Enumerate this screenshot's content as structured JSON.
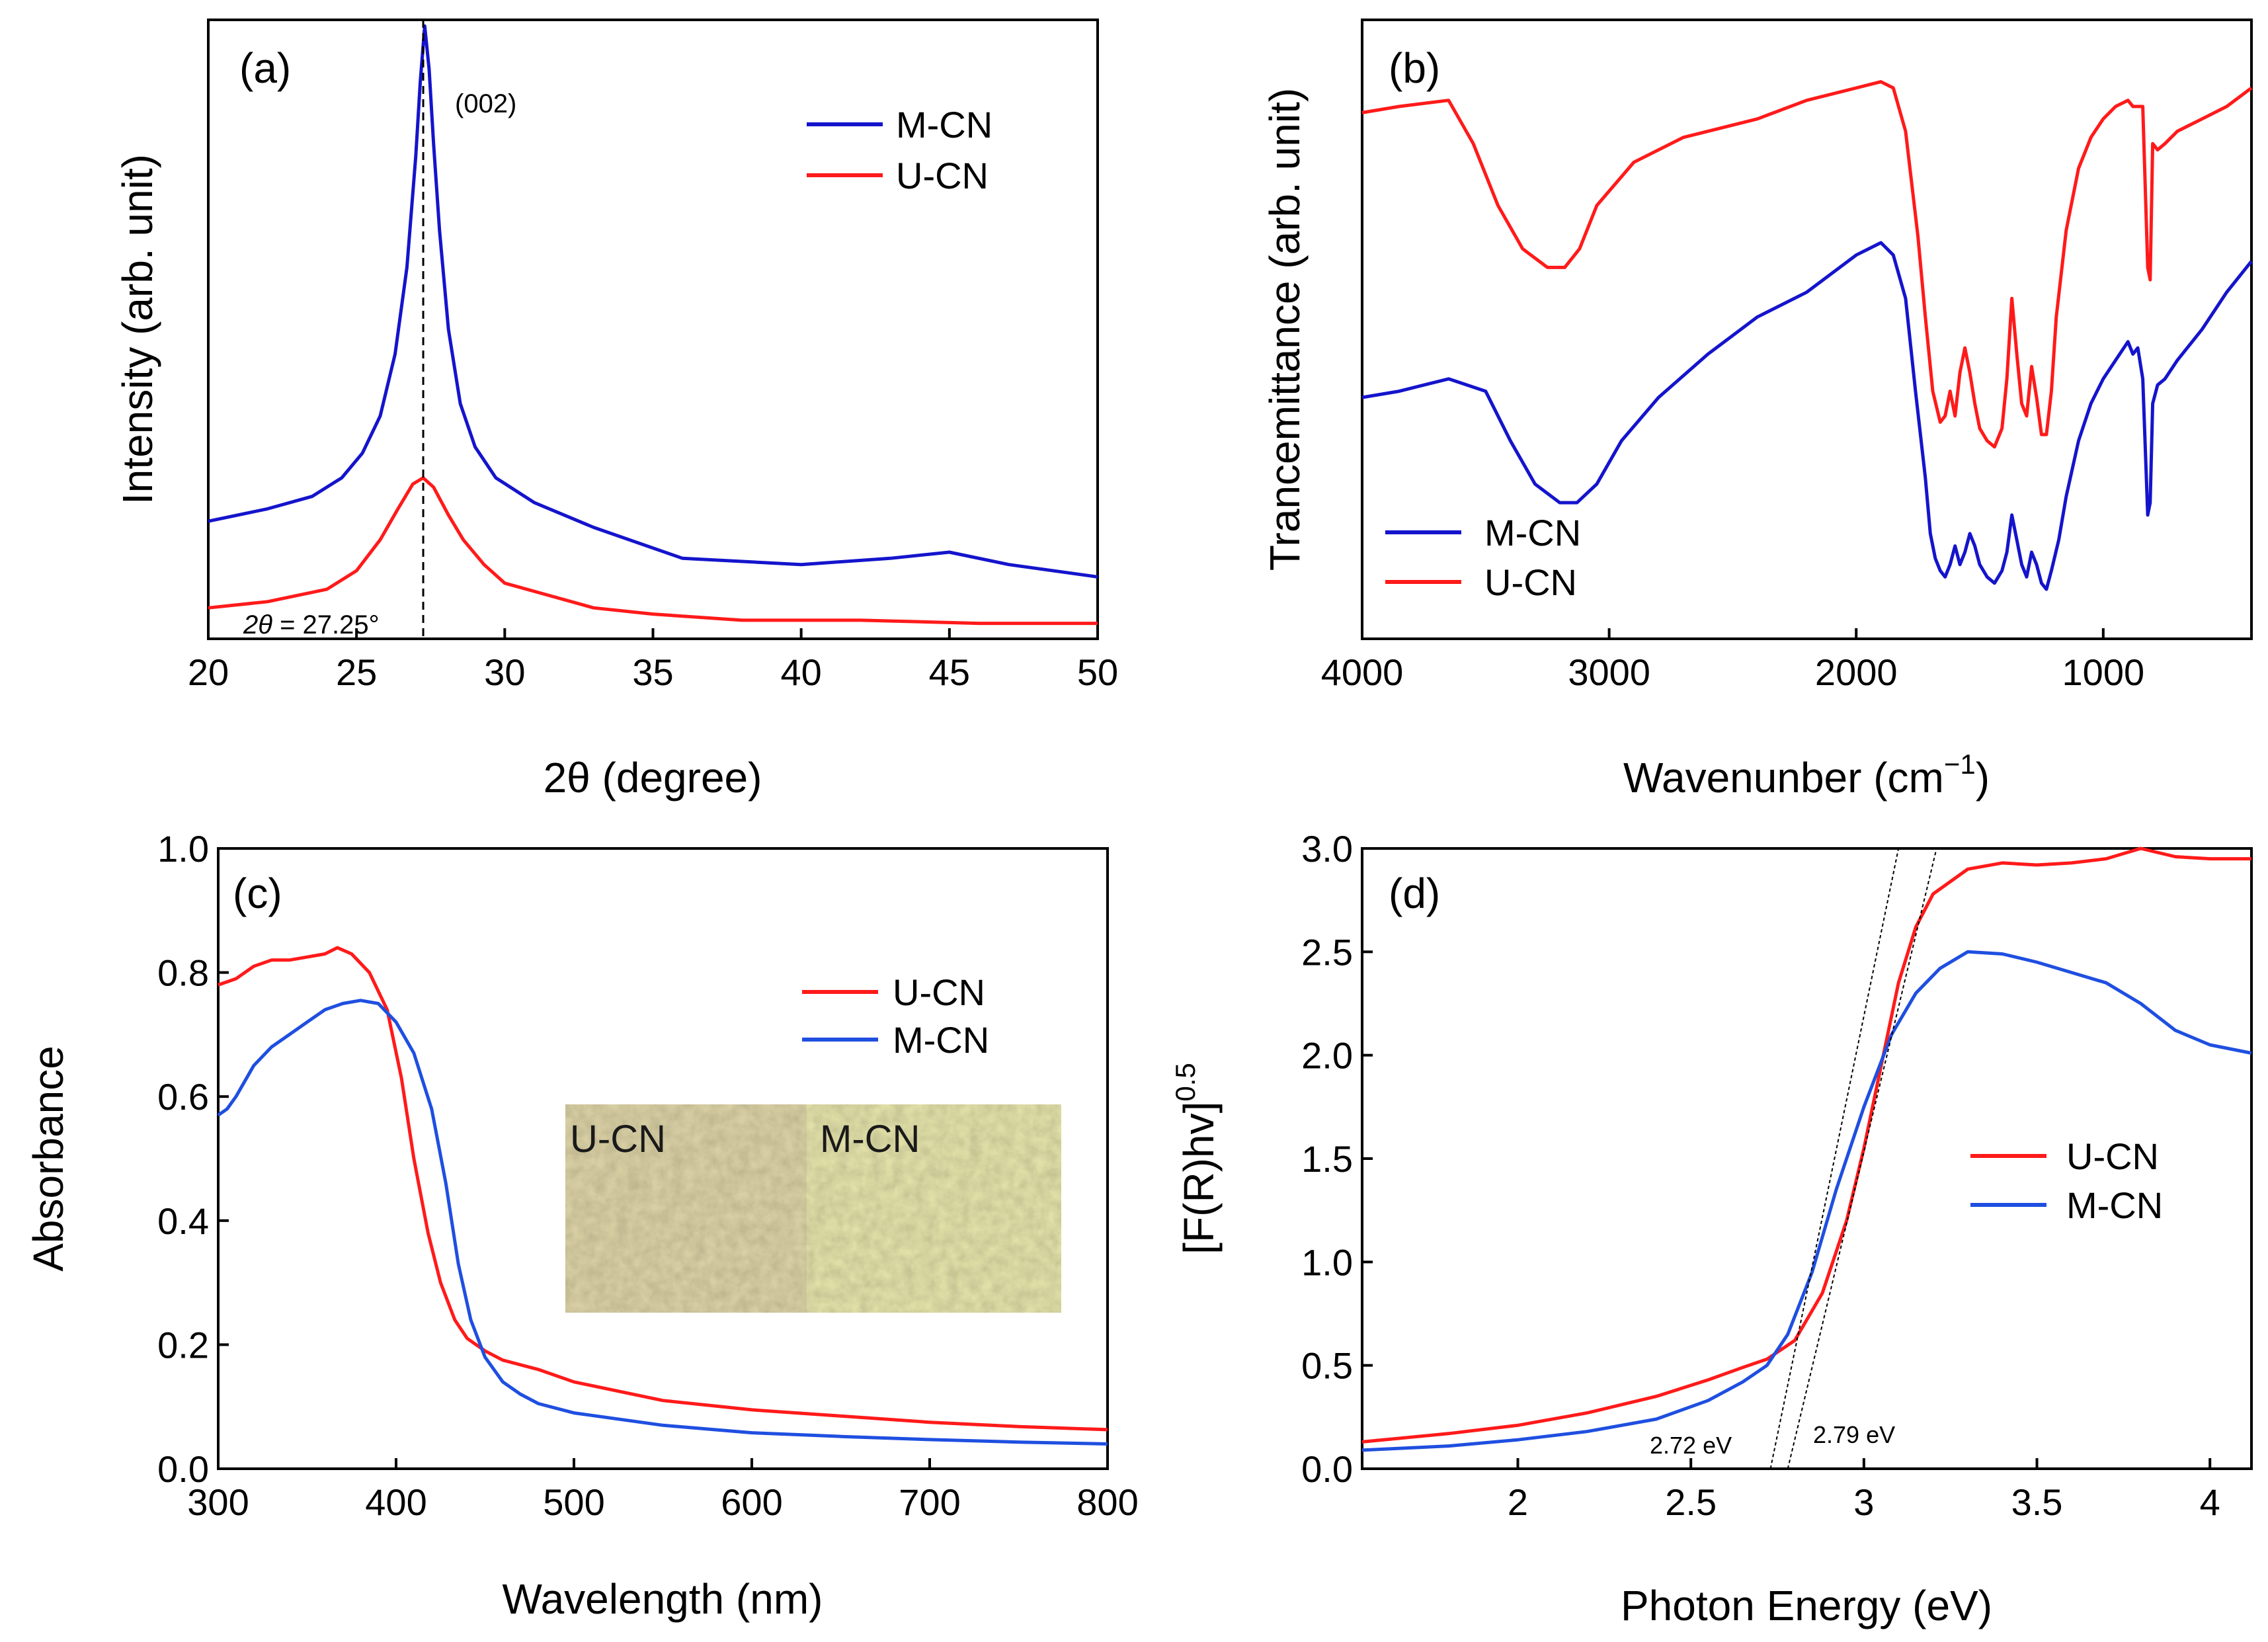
{
  "colors": {
    "red": "#ff1a1a",
    "blue": "#1414cc",
    "blue_c": "#1f4fe0",
    "axis": "#000000"
  },
  "chart_data": [
    {
      "id": "a",
      "type": "line",
      "panel_label": "(a)",
      "xlabel": "2θ (degree)",
      "ylabel": "Intensity (arb. unit)",
      "xlim": [
        20,
        50
      ],
      "ylim": [
        0,
        1
      ],
      "x_ticks": [
        20,
        25,
        30,
        35,
        40,
        45,
        50
      ],
      "y_tick_labels": false,
      "legend": {
        "position": "top-right",
        "order": [
          "M-CN",
          "U-CN"
        ]
      },
      "annotations": {
        "peak_label": "(002)",
        "peak_position_label": "2θ = 27.25°",
        "peak_position": 27.25
      },
      "series": [
        {
          "name": "M-CN",
          "color": "blue",
          "x": [
            20,
            22,
            23.5,
            24.5,
            25.2,
            25.8,
            26.3,
            26.7,
            27.0,
            27.15,
            27.3,
            27.45,
            27.6,
            27.8,
            28.1,
            28.5,
            29,
            29.7,
            31,
            33,
            36,
            40,
            43,
            45,
            47,
            50
          ],
          "y": [
            0.19,
            0.21,
            0.23,
            0.26,
            0.3,
            0.36,
            0.46,
            0.6,
            0.78,
            0.9,
            0.99,
            0.92,
            0.8,
            0.66,
            0.5,
            0.38,
            0.31,
            0.26,
            0.22,
            0.18,
            0.13,
            0.12,
            0.13,
            0.14,
            0.12,
            0.1
          ]
        },
        {
          "name": "U-CN",
          "color": "red",
          "x": [
            20,
            22,
            24,
            25,
            25.8,
            26.4,
            26.9,
            27.25,
            27.6,
            28.1,
            28.6,
            29.3,
            30,
            31.5,
            33,
            35,
            38,
            42,
            46,
            50
          ],
          "y": [
            0.05,
            0.06,
            0.08,
            0.11,
            0.16,
            0.21,
            0.25,
            0.26,
            0.245,
            0.2,
            0.16,
            0.12,
            0.09,
            0.07,
            0.05,
            0.04,
            0.03,
            0.03,
            0.025,
            0.025
          ]
        }
      ]
    },
    {
      "id": "b",
      "type": "line",
      "panel_label": "(b)",
      "xlabel": "Wavenunber (cm",
      "xlabel_superscript": "−1",
      "xlabel_suffix": ")",
      "ylabel": "Trancemittance (arb. unit)",
      "xlim": [
        4000,
        400
      ],
      "x_reversed": true,
      "ylim": [
        0,
        1
      ],
      "x_ticks": [
        4000,
        3000,
        2000,
        1000
      ],
      "y_tick_labels": false,
      "legend": {
        "position": "bottom-left",
        "order": [
          "M-CN",
          "U-CN"
        ]
      },
      "series": [
        {
          "name": "U-CN",
          "color": "red",
          "x": [
            4000,
            3850,
            3650,
            3550,
            3450,
            3350,
            3250,
            3180,
            3120,
            3050,
            2900,
            2700,
            2400,
            2200,
            2000,
            1900,
            1850,
            1800,
            1750,
            1720,
            1690,
            1660,
            1640,
            1620,
            1600,
            1580,
            1560,
            1540,
            1520,
            1500,
            1470,
            1440,
            1410,
            1390,
            1370,
            1350,
            1330,
            1310,
            1290,
            1270,
            1250,
            1230,
            1210,
            1190,
            1150,
            1100,
            1050,
            1000,
            950,
            900,
            880,
            860,
            840,
            820,
            810,
            800,
            780,
            750,
            700,
            600,
            500,
            400
          ],
          "y": [
            0.85,
            0.86,
            0.87,
            0.8,
            0.7,
            0.63,
            0.6,
            0.6,
            0.63,
            0.7,
            0.77,
            0.81,
            0.84,
            0.87,
            0.89,
            0.9,
            0.89,
            0.82,
            0.65,
            0.52,
            0.4,
            0.35,
            0.36,
            0.4,
            0.36,
            0.43,
            0.47,
            0.43,
            0.38,
            0.34,
            0.32,
            0.31,
            0.34,
            0.42,
            0.55,
            0.46,
            0.38,
            0.36,
            0.44,
            0.39,
            0.33,
            0.33,
            0.4,
            0.52,
            0.66,
            0.76,
            0.81,
            0.84,
            0.86,
            0.87,
            0.86,
            0.86,
            0.86,
            0.6,
            0.58,
            0.8,
            0.79,
            0.8,
            0.82,
            0.84,
            0.86,
            0.89
          ]
        },
        {
          "name": "M-CN",
          "color": "blue",
          "x": [
            4000,
            3850,
            3650,
            3500,
            3400,
            3300,
            3200,
            3130,
            3050,
            2950,
            2800,
            2600,
            2400,
            2200,
            2000,
            1900,
            1850,
            1800,
            1760,
            1720,
            1700,
            1680,
            1660,
            1640,
            1620,
            1600,
            1580,
            1560,
            1540,
            1520,
            1500,
            1470,
            1440,
            1410,
            1390,
            1370,
            1350,
            1330,
            1310,
            1290,
            1270,
            1250,
            1230,
            1210,
            1180,
            1150,
            1100,
            1050,
            1000,
            950,
            900,
            880,
            860,
            840,
            820,
            810,
            800,
            780,
            750,
            700,
            600,
            500,
            400
          ],
          "y": [
            0.39,
            0.4,
            0.42,
            0.4,
            0.32,
            0.25,
            0.22,
            0.22,
            0.25,
            0.32,
            0.39,
            0.46,
            0.52,
            0.56,
            0.62,
            0.64,
            0.62,
            0.55,
            0.4,
            0.26,
            0.17,
            0.13,
            0.11,
            0.1,
            0.12,
            0.15,
            0.12,
            0.14,
            0.17,
            0.15,
            0.12,
            0.1,
            0.09,
            0.11,
            0.14,
            0.2,
            0.16,
            0.12,
            0.1,
            0.14,
            0.12,
            0.09,
            0.08,
            0.11,
            0.16,
            0.23,
            0.32,
            0.38,
            0.42,
            0.45,
            0.48,
            0.46,
            0.47,
            0.42,
            0.2,
            0.22,
            0.38,
            0.41,
            0.42,
            0.45,
            0.5,
            0.56,
            0.61
          ]
        }
      ]
    },
    {
      "id": "c",
      "type": "line",
      "panel_label": "(c)",
      "xlabel": "Wavelength (nm)",
      "ylabel": "Absorbance",
      "xlim": [
        300,
        800
      ],
      "ylim": [
        0,
        1
      ],
      "x_ticks": [
        300,
        400,
        500,
        600,
        700,
        800
      ],
      "y_ticks": [
        0.0,
        0.2,
        0.4,
        0.6,
        0.8,
        1.0
      ],
      "legend": {
        "position": "top-right",
        "order": [
          "U-CN",
          "M-CN"
        ]
      },
      "inset": {
        "left_label": "U-CN",
        "right_label": "M-CN",
        "left_color": "#d8cfa4",
        "right_color": "#e1e0a8"
      },
      "series": [
        {
          "name": "U-CN",
          "color": "red",
          "x": [
            300,
            310,
            320,
            330,
            340,
            350,
            360,
            367,
            375,
            385,
            395,
            403,
            410,
            418,
            425,
            433,
            440,
            450,
            460,
            480,
            500,
            550,
            600,
            650,
            700,
            750,
            800
          ],
          "y": [
            0.78,
            0.79,
            0.81,
            0.82,
            0.82,
            0.825,
            0.83,
            0.84,
            0.83,
            0.8,
            0.74,
            0.63,
            0.5,
            0.38,
            0.3,
            0.24,
            0.21,
            0.19,
            0.175,
            0.16,
            0.14,
            0.11,
            0.095,
            0.085,
            0.075,
            0.068,
            0.063
          ]
        },
        {
          "name": "M-CN",
          "color": "blue_c",
          "x": [
            300,
            305,
            310,
            320,
            330,
            340,
            350,
            360,
            370,
            380,
            390,
            400,
            410,
            420,
            428,
            435,
            442,
            450,
            460,
            470,
            480,
            500,
            550,
            600,
            650,
            700,
            750,
            800
          ],
          "y": [
            0.57,
            0.58,
            0.6,
            0.65,
            0.68,
            0.7,
            0.72,
            0.74,
            0.75,
            0.755,
            0.75,
            0.72,
            0.67,
            0.58,
            0.46,
            0.33,
            0.24,
            0.18,
            0.14,
            0.12,
            0.105,
            0.09,
            0.07,
            0.058,
            0.052,
            0.047,
            0.043,
            0.04
          ]
        }
      ]
    },
    {
      "id": "d",
      "type": "line",
      "panel_label": "(d)",
      "xlabel": "Photon Energy (eV)",
      "ylabel": "[F(R)hv]",
      "ylabel_superscript": "0.5",
      "xlim": [
        1.55,
        4.12
      ],
      "ylim": [
        0,
        3
      ],
      "x_ticks": [
        2.0,
        2.5,
        3.0,
        3.5,
        4.0
      ],
      "y_ticks": [
        0.0,
        0.5,
        1.0,
        1.5,
        2.0,
        2.5,
        3.0
      ],
      "legend": {
        "position": "right",
        "order": [
          "U-CN",
          "M-CN"
        ]
      },
      "annotations": [
        {
          "text": "2.72 eV",
          "value": 2.72
        },
        {
          "text": "2.79 eV",
          "value": 2.79
        }
      ],
      "tangents": [
        {
          "x0": 2.73,
          "x1": 3.1,
          "y0": 0,
          "y1": 3.0
        },
        {
          "x0": 2.78,
          "x1": 3.21,
          "y0": 0,
          "y1": 3.0
        }
      ],
      "series": [
        {
          "name": "U-CN",
          "color": "red",
          "x": [
            1.55,
            1.8,
            2.0,
            2.2,
            2.4,
            2.55,
            2.65,
            2.72,
            2.8,
            2.88,
            2.95,
            3.0,
            3.05,
            3.1,
            3.15,
            3.2,
            3.3,
            3.4,
            3.5,
            3.6,
            3.7,
            3.8,
            3.9,
            4.0,
            4.12
          ],
          "y": [
            0.13,
            0.17,
            0.21,
            0.27,
            0.35,
            0.43,
            0.49,
            0.53,
            0.62,
            0.85,
            1.2,
            1.55,
            1.95,
            2.35,
            2.62,
            2.78,
            2.9,
            2.93,
            2.92,
            2.93,
            2.95,
            3.0,
            2.96,
            2.95,
            2.95
          ]
        },
        {
          "name": "M-CN",
          "color": "blue_c",
          "x": [
            1.55,
            1.8,
            2.0,
            2.2,
            2.4,
            2.55,
            2.65,
            2.72,
            2.78,
            2.85,
            2.92,
            3.0,
            3.08,
            3.15,
            3.22,
            3.3,
            3.4,
            3.5,
            3.6,
            3.7,
            3.8,
            3.9,
            4.0,
            4.12
          ],
          "y": [
            0.09,
            0.11,
            0.14,
            0.18,
            0.24,
            0.33,
            0.42,
            0.5,
            0.65,
            0.95,
            1.35,
            1.75,
            2.1,
            2.3,
            2.42,
            2.5,
            2.49,
            2.45,
            2.4,
            2.35,
            2.25,
            2.12,
            2.05,
            2.01
          ]
        }
      ]
    }
  ]
}
